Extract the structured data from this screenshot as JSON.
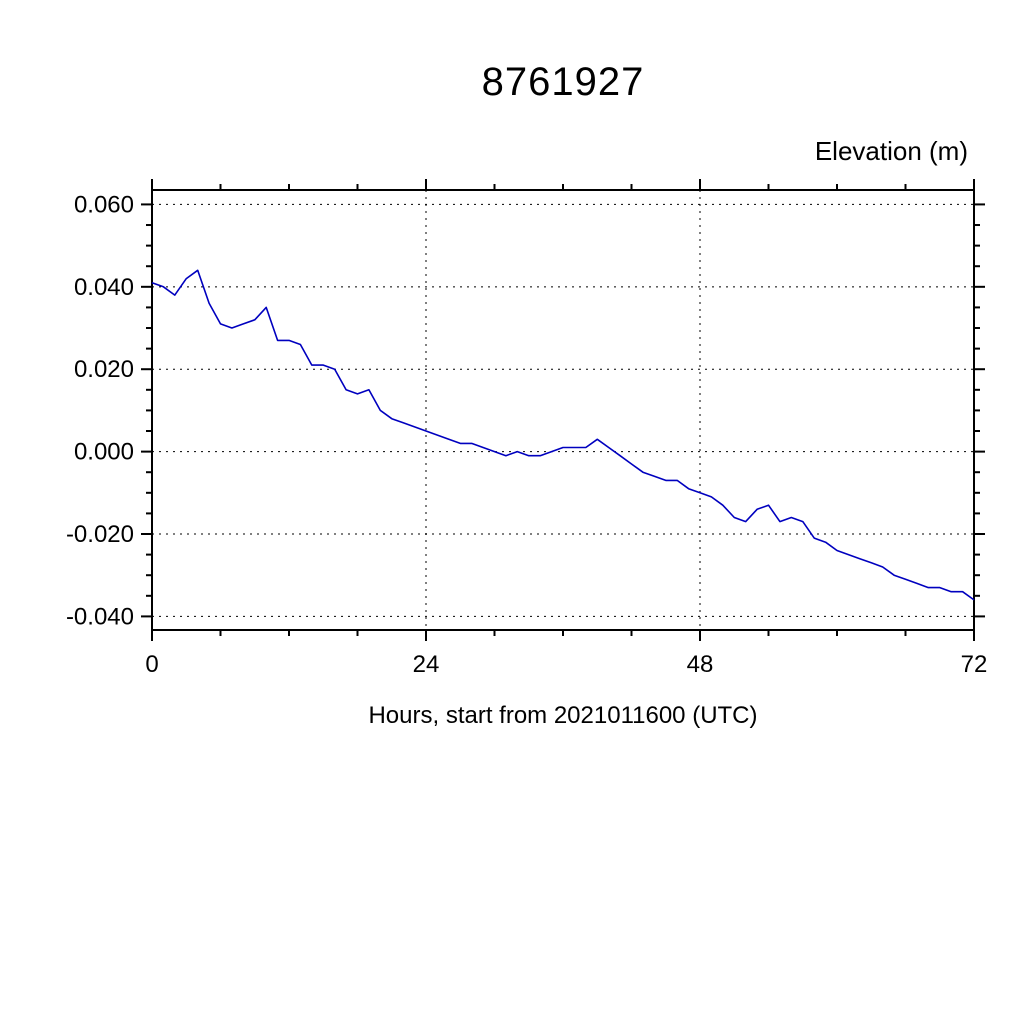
{
  "page": {
    "background": "#ffffff"
  },
  "chart_data": {
    "type": "line",
    "title": "8761927",
    "ylabel": "Elevation (m)",
    "xlabel": "Hours, start from 2021011600 (UTC)",
    "x_start": 0,
    "x_step": 1,
    "values": [
      0.041,
      0.04,
      0.038,
      0.042,
      0.044,
      0.036,
      0.031,
      0.03,
      0.031,
      0.032,
      0.035,
      0.027,
      0.027,
      0.026,
      0.021,
      0.021,
      0.02,
      0.015,
      0.014,
      0.015,
      0.01,
      0.008,
      0.007,
      0.006,
      0.005,
      0.004,
      0.003,
      0.002,
      0.002,
      0.001,
      0.0,
      -0.001,
      0.0,
      -0.001,
      -0.001,
      0.0,
      0.001,
      0.001,
      0.001,
      0.003,
      0.001,
      -0.001,
      -0.003,
      -0.005,
      -0.006,
      -0.007,
      -0.007,
      -0.009,
      -0.01,
      -0.011,
      -0.013,
      -0.016,
      -0.017,
      -0.014,
      -0.013,
      -0.017,
      -0.016,
      -0.017,
      -0.021,
      -0.022,
      -0.024,
      -0.025,
      -0.026,
      -0.027,
      -0.028,
      -0.03,
      -0.031,
      -0.032,
      -0.033,
      -0.033,
      -0.034,
      -0.034,
      -0.036
    ],
    "xlim": [
      0,
      72
    ],
    "ylim": [
      -0.0433,
      0.0635
    ],
    "xticks": [
      0,
      24,
      48,
      72
    ],
    "xtick_labels": [
      "0",
      "24",
      "48",
      "72"
    ],
    "yticks": [
      -0.04,
      -0.02,
      0.0,
      0.02,
      0.04,
      0.06
    ],
    "ytick_labels": [
      "-0.040",
      "-0.020",
      "0.000",
      "0.020",
      "0.040",
      "0.060"
    ],
    "x_minor_step": 6,
    "y_minor_step": 0.005,
    "grid": "dashed",
    "legend": "none",
    "line_color": "#0000bf",
    "axis_color": "#000000"
  }
}
